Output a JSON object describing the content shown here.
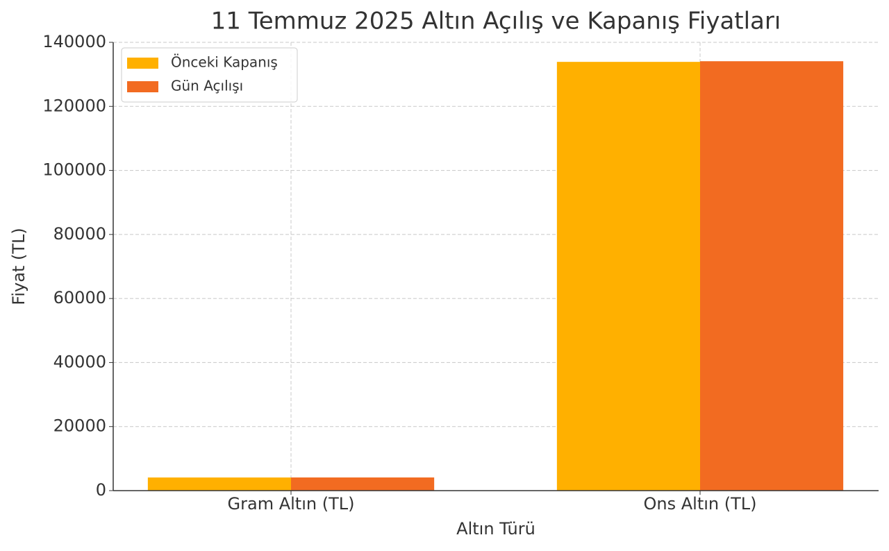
{
  "chart_data": {
    "type": "bar",
    "title": "11 Temmuz 2025 Altın Açılış ve Kapanış Fiyatları",
    "x_label": "Altın Türü",
    "y_label": "Fiyat (TL)",
    "categories": [
      "Gram Altın (TL)",
      "Ons Altın (TL)"
    ],
    "series": [
      {
        "name": "Önceki Kapanış",
        "color": "#ffb000",
        "values": [
          4100,
          133900
        ]
      },
      {
        "name": "Gün Açılışı",
        "color": "#f26b21",
        "values": [
          4110,
          134100
        ]
      }
    ],
    "ylim": [
      0,
      140000
    ],
    "yticks": [
      0,
      20000,
      40000,
      60000,
      80000,
      100000,
      120000,
      140000
    ],
    "grid": true,
    "legend": "upper left"
  }
}
